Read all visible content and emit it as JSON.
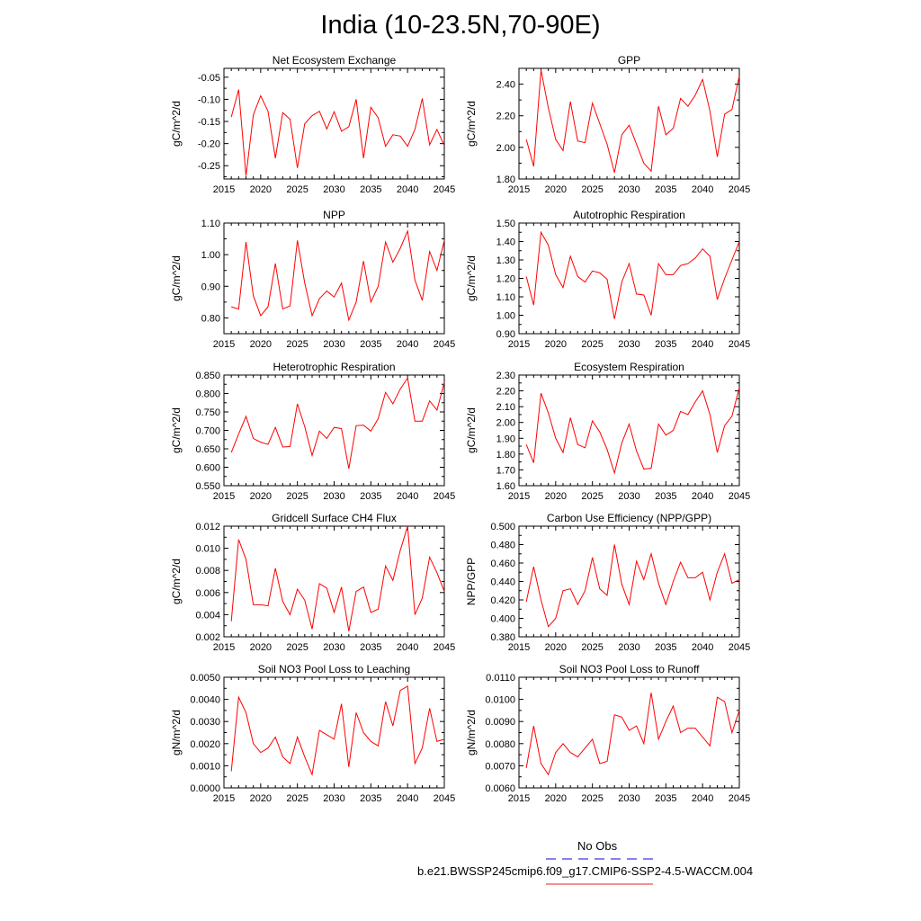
{
  "title": "India (10-23.5N,70-90E)",
  "legend": [
    {
      "label": "No Obs",
      "color": "#3b3bcf",
      "style": "dashed"
    },
    {
      "label": "b.e21.BWSSP245cmip6.f09_g17.CMIP6-SSP2-4.5-WACCM.004",
      "color": "#e02020",
      "style": "solid"
    }
  ],
  "line_color": "#ff0000",
  "chart_data": [
    {
      "type": "line",
      "title": "Net Ecosystem Exchange",
      "ylabel": "gC/m^2/d",
      "xlim": [
        2015,
        2045
      ],
      "xticks": [
        "2015",
        "2020",
        "2025",
        "2030",
        "2035",
        "2040",
        "2045"
      ],
      "ylim": [
        -0.28,
        -0.03
      ],
      "yticks": [
        "-0.05",
        "-0.10",
        "-0.15",
        "-0.20",
        "-0.25"
      ],
      "x": [
        2016,
        2017,
        2018,
        2019,
        2020,
        2021,
        2022,
        2023,
        2024,
        2025,
        2026,
        2027,
        2028,
        2029,
        2030,
        2031,
        2032,
        2033,
        2034,
        2035,
        2036,
        2037,
        2038,
        2039,
        2040,
        2041,
        2042,
        2043,
        2044,
        2045
      ],
      "values": [
        -0.14,
        -0.078,
        -0.273,
        -0.135,
        -0.092,
        -0.127,
        -0.233,
        -0.13,
        -0.145,
        -0.255,
        -0.155,
        -0.137,
        -0.127,
        -0.167,
        -0.128,
        -0.172,
        -0.162,
        -0.1,
        -0.233,
        -0.118,
        -0.142,
        -0.206,
        -0.18,
        -0.183,
        -0.206,
        -0.168,
        -0.098,
        -0.203,
        -0.168,
        -0.205
      ]
    },
    {
      "type": "line",
      "title": "GPP",
      "ylabel": "gC/m^2/d",
      "xlim": [
        2015,
        2045
      ],
      "xticks": [
        "2015",
        "2020",
        "2025",
        "2030",
        "2035",
        "2040",
        "2045"
      ],
      "ylim": [
        1.8,
        2.5
      ],
      "yticks": [
        "1.80",
        "2.00",
        "2.20",
        "2.40"
      ],
      "x": [
        2016,
        2017,
        2018,
        2019,
        2020,
        2021,
        2022,
        2023,
        2024,
        2025,
        2026,
        2027,
        2028,
        2029,
        2030,
        2031,
        2032,
        2033,
        2034,
        2035,
        2036,
        2037,
        2038,
        2039,
        2040,
        2041,
        2042,
        2043,
        2044,
        2045
      ],
      "values": [
        2.05,
        1.88,
        2.49,
        2.25,
        2.05,
        1.98,
        2.29,
        2.04,
        2.03,
        2.28,
        2.15,
        2.02,
        1.84,
        2.08,
        2.14,
        2.02,
        1.9,
        1.85,
        2.26,
        2.08,
        2.12,
        2.31,
        2.26,
        2.33,
        2.43,
        2.23,
        1.94,
        2.21,
        2.24,
        2.45
      ]
    },
    {
      "type": "line",
      "title": "NPP",
      "ylabel": "gC/m^2/d",
      "xlim": [
        2015,
        2045
      ],
      "xticks": [
        "2015",
        "2020",
        "2025",
        "2030",
        "2035",
        "2040",
        "2045"
      ],
      "ylim": [
        0.75,
        1.1
      ],
      "yticks": [
        "0.80",
        "0.90",
        "1.00",
        "1.10"
      ],
      "x": [
        2016,
        2017,
        2018,
        2019,
        2020,
        2021,
        2022,
        2023,
        2024,
        2025,
        2026,
        2027,
        2028,
        2029,
        2030,
        2031,
        2032,
        2033,
        2034,
        2035,
        2036,
        2037,
        2038,
        2039,
        2040,
        2041,
        2042,
        2043,
        2044,
        2045
      ],
      "values": [
        0.835,
        0.828,
        1.04,
        0.87,
        0.807,
        0.835,
        0.972,
        0.828,
        0.838,
        1.045,
        0.91,
        0.807,
        0.861,
        0.885,
        0.866,
        0.91,
        0.793,
        0.85,
        0.98,
        0.85,
        0.9,
        1.04,
        0.976,
        1.02,
        1.075,
        0.92,
        0.855,
        1.01,
        0.95,
        1.045
      ]
    },
    {
      "type": "line",
      "title": "Autotrophic Respiration",
      "ylabel": "gC/m^2/d",
      "xlim": [
        2015,
        2045
      ],
      "xticks": [
        "2015",
        "2020",
        "2025",
        "2030",
        "2035",
        "2040",
        "2045"
      ],
      "ylim": [
        0.9,
        1.5
      ],
      "yticks": [
        "0.90",
        "1.00",
        "1.10",
        "1.20",
        "1.30",
        "1.40",
        "1.50"
      ],
      "x": [
        2016,
        2017,
        2018,
        2019,
        2020,
        2021,
        2022,
        2023,
        2024,
        2025,
        2026,
        2027,
        2028,
        2029,
        2030,
        2031,
        2032,
        2033,
        2034,
        2035,
        2036,
        2037,
        2038,
        2039,
        2040,
        2041,
        2042,
        2043,
        2044,
        2045
      ],
      "values": [
        1.21,
        1.055,
        1.45,
        1.38,
        1.22,
        1.15,
        1.32,
        1.21,
        1.18,
        1.24,
        1.23,
        1.195,
        0.98,
        1.18,
        1.28,
        1.115,
        1.11,
        1.0,
        1.28,
        1.22,
        1.22,
        1.27,
        1.28,
        1.31,
        1.36,
        1.32,
        1.085,
        1.2,
        1.3,
        1.4
      ]
    },
    {
      "type": "line",
      "title": "Heterotrophic Respiration",
      "ylabel": "gC/m^2/d",
      "xlim": [
        2015,
        2045
      ],
      "xticks": [
        "2015",
        "2020",
        "2025",
        "2030",
        "2035",
        "2040",
        "2045"
      ],
      "ylim": [
        0.55,
        0.85
      ],
      "yticks": [
        "0.550",
        "0.600",
        "0.650",
        "0.700",
        "0.750",
        "0.800",
        "0.850"
      ],
      "x": [
        2016,
        2017,
        2018,
        2019,
        2020,
        2021,
        2022,
        2023,
        2024,
        2025,
        2026,
        2027,
        2028,
        2029,
        2030,
        2031,
        2032,
        2033,
        2034,
        2035,
        2036,
        2037,
        2038,
        2039,
        2040,
        2041,
        2042,
        2043,
        2044,
        2045
      ],
      "values": [
        0.64,
        0.69,
        0.738,
        0.678,
        0.668,
        0.662,
        0.708,
        0.655,
        0.656,
        0.772,
        0.71,
        0.632,
        0.698,
        0.678,
        0.708,
        0.705,
        0.596,
        0.713,
        0.714,
        0.698,
        0.732,
        0.803,
        0.772,
        0.812,
        0.842,
        0.725,
        0.725,
        0.78,
        0.755,
        0.83
      ]
    },
    {
      "type": "line",
      "title": "Ecosystem Respiration",
      "ylabel": "gC/m^2/d",
      "xlim": [
        2015,
        2045
      ],
      "xticks": [
        "2015",
        "2020",
        "2025",
        "2030",
        "2035",
        "2040",
        "2045"
      ],
      "ylim": [
        1.6,
        2.3
      ],
      "yticks": [
        "1.60",
        "1.70",
        "1.80",
        "1.90",
        "2.00",
        "2.10",
        "2.20",
        "2.30"
      ],
      "x": [
        2016,
        2017,
        2018,
        2019,
        2020,
        2021,
        2022,
        2023,
        2024,
        2025,
        2026,
        2027,
        2028,
        2029,
        2030,
        2031,
        2032,
        2033,
        2034,
        2035,
        2036,
        2037,
        2038,
        2039,
        2040,
        2041,
        2042,
        2043,
        2044,
        2045
      ],
      "values": [
        1.86,
        1.745,
        2.185,
        2.06,
        1.9,
        1.81,
        2.03,
        1.86,
        1.84,
        2.01,
        1.94,
        1.83,
        1.68,
        1.87,
        1.99,
        1.82,
        1.705,
        1.71,
        1.99,
        1.92,
        1.95,
        2.07,
        2.05,
        2.13,
        2.2,
        2.05,
        1.81,
        1.98,
        2.04,
        2.22
      ]
    },
    {
      "type": "line",
      "title": "Gridcell Surface CH4 Flux",
      "ylabel": "gC/m^2/d",
      "xlim": [
        2015,
        2045
      ],
      "xticks": [
        "2015",
        "2020",
        "2025",
        "2030",
        "2035",
        "2040",
        "2045"
      ],
      "ylim": [
        0.002,
        0.012
      ],
      "yticks": [
        "0.002",
        "0.004",
        "0.006",
        "0.008",
        "0.010",
        "0.012"
      ],
      "x": [
        2016,
        2017,
        2018,
        2019,
        2020,
        2021,
        2022,
        2023,
        2024,
        2025,
        2026,
        2027,
        2028,
        2029,
        2030,
        2031,
        2032,
        2033,
        2034,
        2035,
        2036,
        2037,
        2038,
        2039,
        2040,
        2041,
        2042,
        2043,
        2044,
        2045
      ],
      "values": [
        0.0034,
        0.0108,
        0.009,
        0.0049,
        0.0049,
        0.0048,
        0.0082,
        0.0052,
        0.004,
        0.0063,
        0.0053,
        0.0027,
        0.0068,
        0.0064,
        0.0042,
        0.0065,
        0.0025,
        0.0061,
        0.0065,
        0.0042,
        0.0045,
        0.0084,
        0.0071,
        0.0098,
        0.012,
        0.004,
        0.0055,
        0.0092,
        0.0078,
        0.0061
      ]
    },
    {
      "type": "line",
      "title": "Carbon Use Efficiency (NPP/GPP)",
      "ylabel": "NPP/GPP",
      "xlim": [
        2015,
        2045
      ],
      "xticks": [
        "2015",
        "2020",
        "2025",
        "2030",
        "2035",
        "2040",
        "2045"
      ],
      "ylim": [
        0.38,
        0.5
      ],
      "yticks": [
        "0.380",
        "0.400",
        "0.420",
        "0.440",
        "0.460",
        "0.480",
        "0.500"
      ],
      "x": [
        2016,
        2017,
        2018,
        2019,
        2020,
        2021,
        2022,
        2023,
        2024,
        2025,
        2026,
        2027,
        2028,
        2029,
        2030,
        2031,
        2032,
        2033,
        2034,
        2035,
        2036,
        2037,
        2038,
        2039,
        2040,
        2041,
        2042,
        2043,
        2044,
        2045
      ],
      "values": [
        0.418,
        0.456,
        0.42,
        0.391,
        0.4,
        0.43,
        0.432,
        0.415,
        0.43,
        0.466,
        0.432,
        0.425,
        0.48,
        0.437,
        0.415,
        0.462,
        0.442,
        0.47,
        0.438,
        0.415,
        0.44,
        0.461,
        0.444,
        0.444,
        0.45,
        0.42,
        0.45,
        0.47,
        0.438,
        0.442
      ]
    },
    {
      "type": "line",
      "title": "Soil NO3 Pool Loss to Leaching",
      "ylabel": "gN/m^2/d",
      "xlim": [
        2015,
        2045
      ],
      "xticks": [
        "2015",
        "2020",
        "2025",
        "2030",
        "2035",
        "2040",
        "2045"
      ],
      "ylim": [
        0,
        0.005
      ],
      "yticks": [
        "0.0000",
        "0.0010",
        "0.0020",
        "0.0030",
        "0.0040",
        "0.0050"
      ],
      "x": [
        2016,
        2017,
        2018,
        2019,
        2020,
        2021,
        2022,
        2023,
        2024,
        2025,
        2026,
        2027,
        2028,
        2029,
        2030,
        2031,
        2032,
        2033,
        2034,
        2035,
        2036,
        2037,
        2038,
        2039,
        2040,
        2041,
        2042,
        2043,
        2044,
        2045
      ],
      "values": [
        0.00075,
        0.0041,
        0.0034,
        0.002,
        0.0016,
        0.0018,
        0.0023,
        0.0014,
        0.0011,
        0.0023,
        0.0014,
        0.0006,
        0.0026,
        0.0024,
        0.0022,
        0.0038,
        0.00095,
        0.0034,
        0.0025,
        0.0021,
        0.0019,
        0.0039,
        0.0028,
        0.0044,
        0.0046,
        0.0011,
        0.0018,
        0.0036,
        0.0021,
        0.0022
      ]
    },
    {
      "type": "line",
      "title": "Soil NO3 Pool Loss to Runoff",
      "ylabel": "gN/m^2/d",
      "xlim": [
        2015,
        2045
      ],
      "xticks": [
        "2015",
        "2020",
        "2025",
        "2030",
        "2035",
        "2040",
        "2045"
      ],
      "ylim": [
        0.006,
        0.011
      ],
      "yticks": [
        "0.0060",
        "0.0070",
        "0.0080",
        "0.0090",
        "0.0100",
        "0.0110"
      ],
      "x": [
        2016,
        2017,
        2018,
        2019,
        2020,
        2021,
        2022,
        2023,
        2024,
        2025,
        2026,
        2027,
        2028,
        2029,
        2030,
        2031,
        2032,
        2033,
        2034,
        2035,
        2036,
        2037,
        2038,
        2039,
        2040,
        2041,
        2042,
        2043,
        2044,
        2045
      ],
      "values": [
        0.0069,
        0.0088,
        0.0071,
        0.0066,
        0.0076,
        0.008,
        0.0076,
        0.0074,
        0.0078,
        0.0082,
        0.0071,
        0.0072,
        0.0093,
        0.0092,
        0.0086,
        0.0088,
        0.008,
        0.0103,
        0.0082,
        0.009,
        0.0097,
        0.0085,
        0.0087,
        0.0087,
        0.0083,
        0.0079,
        0.0101,
        0.0099,
        0.0085,
        0.0095
      ]
    }
  ]
}
